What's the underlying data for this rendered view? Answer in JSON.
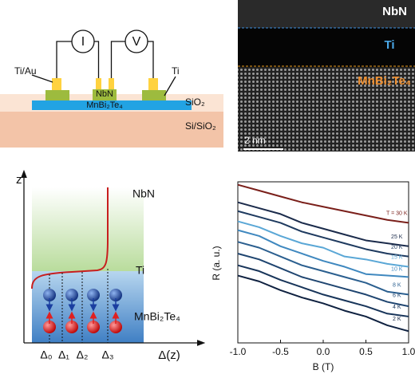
{
  "schematic": {
    "contact": "Ti/Au",
    "current": "I",
    "voltage": "V",
    "superconductor": "NbN",
    "interlayer": "Ti",
    "film": "MnBi₂Te₄",
    "cap": "SiO₂",
    "substrate": "Si/SiO₂"
  },
  "tem": {
    "top": "NbN",
    "middle": "Ti",
    "bottom": "MnBi₂Te₄",
    "scale": "2 nm"
  },
  "profile": {
    "axis": "z",
    "top": "NbN",
    "middle": "Ti",
    "bottom": "MnBi₂Te₄",
    "gaps": [
      "Δ₀",
      "Δ₁",
      "Δ₂",
      "Δ₃"
    ],
    "xlabel": "Δ(z)"
  },
  "chart_data": {
    "type": "line",
    "xlabel": "B (T)",
    "ylabel": "R (a. u.)",
    "x": [
      -1.0,
      -0.75,
      -0.5,
      -0.25,
      0,
      0.25,
      0.5,
      0.75,
      1.0
    ],
    "xlim": [
      -1.0,
      1.0
    ],
    "xticks": [
      {
        "value": -1.0,
        "label": "-1.0"
      },
      {
        "value": -0.5,
        "label": "-0.5"
      },
      {
        "value": 0,
        "label": "0.0"
      },
      {
        "value": 0.5,
        "label": "0.5"
      },
      {
        "value": 1.0,
        "label": "1.0"
      }
    ],
    "ylim": [
      0,
      11
    ],
    "series": [
      {
        "name": "T = 30 K",
        "color": "#7a1f1a",
        "values": [
          10.8,
          10.4,
          10.0,
          9.6,
          9.3,
          9.0,
          8.7,
          8.4,
          8.2
        ]
      },
      {
        "name": "25 K",
        "color": "#1b2b4b",
        "values": [
          9.6,
          9.2,
          8.8,
          8.2,
          7.8,
          7.4,
          7.0,
          6.8,
          6.6
        ]
      },
      {
        "name": "20 K",
        "color": "#1e3a5f",
        "values": [
          9.0,
          8.6,
          8.2,
          7.6,
          7.2,
          6.8,
          6.4,
          6.1,
          5.9
        ]
      },
      {
        "name": "15 K",
        "color": "#5aa7d6",
        "values": [
          8.3,
          7.9,
          7.3,
          6.8,
          6.5,
          5.9,
          5.7,
          5.4,
          5.2
        ]
      },
      {
        "name": "10 K",
        "color": "#3f88bf",
        "values": [
          7.7,
          7.3,
          6.6,
          6.1,
          5.6,
          5.2,
          4.7,
          4.6,
          4.5
        ]
      },
      {
        "name": "8 K",
        "color": "#2b5f8f",
        "values": [
          6.9,
          6.5,
          5.9,
          5.3,
          4.9,
          4.5,
          4.1,
          3.5,
          3.3
        ]
      },
      {
        "name": "6 K",
        "color": "#1f4570",
        "values": [
          6.1,
          5.7,
          5.1,
          4.5,
          4.1,
          3.7,
          3.3,
          2.8,
          2.5
        ]
      },
      {
        "name": "4 K",
        "color": "#18355a",
        "values": [
          5.3,
          4.9,
          4.3,
          3.8,
          3.3,
          2.9,
          2.5,
          2.0,
          1.8
        ]
      },
      {
        "name": "2 K",
        "color": "#0f2140",
        "values": [
          4.6,
          4.2,
          3.6,
          3.1,
          2.7,
          2.2,
          1.8,
          1.2,
          0.8
        ]
      }
    ]
  }
}
